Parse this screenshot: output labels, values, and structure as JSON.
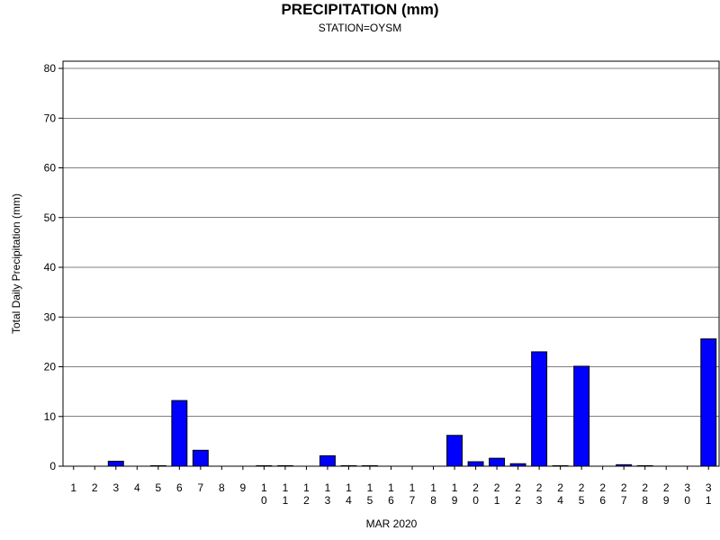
{
  "chart_data": {
    "type": "bar",
    "title": "PRECIPITATION (mm)",
    "subtitle": "STATION=OYSM",
    "xlabel": "MAR 2020",
    "ylabel": "Total Daily Precipitation (mm)",
    "ylim": [
      0,
      80
    ],
    "yticks": [
      0,
      10,
      20,
      30,
      40,
      50,
      60,
      70,
      80
    ],
    "grid": true,
    "bar_color": "#0000ff",
    "categories": [
      "1",
      "2",
      "3",
      "4",
      "5",
      "6",
      "7",
      "8",
      "9",
      "10",
      "11",
      "12",
      "13",
      "14",
      "15",
      "16",
      "17",
      "18",
      "19",
      "20",
      "21",
      "22",
      "23",
      "24",
      "25",
      "26",
      "27",
      "28",
      "29",
      "30",
      "31"
    ],
    "values": [
      0,
      0,
      1.0,
      0,
      0.1,
      13.2,
      3.2,
      0,
      0,
      0.1,
      0.1,
      0,
      2.1,
      0.1,
      0.1,
      0,
      0,
      0,
      6.2,
      0.9,
      1.6,
      0.5,
      23.0,
      0.1,
      20.1,
      0,
      0.3,
      0.1,
      0,
      0,
      25.6
    ]
  }
}
